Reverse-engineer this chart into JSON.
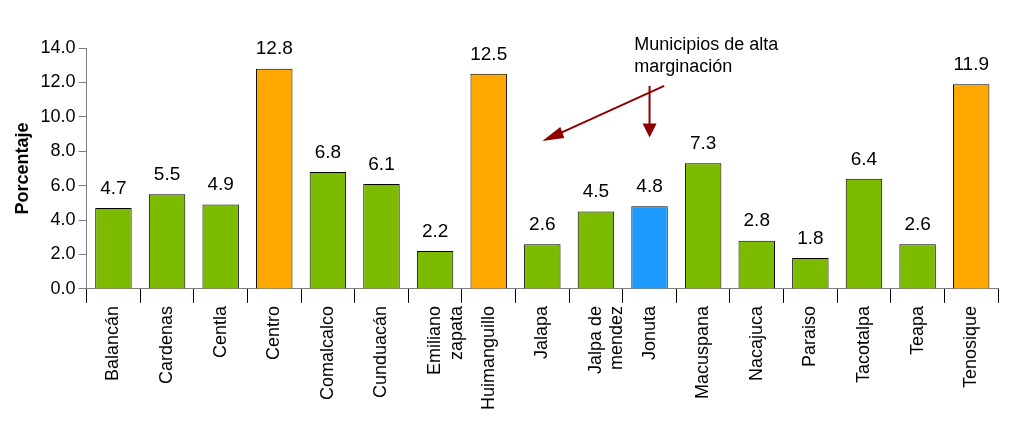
{
  "chart_data": {
    "type": "bar",
    "ylabel": "Porcentaje",
    "categories": [
      "Balancán",
      "Cardenas",
      "Centla",
      "Centro",
      "Comalcalco",
      "Cunduacán",
      "Emiliano zapata",
      "Huimanguillo",
      "Jalapa",
      "Jalpa de mendez",
      "Jonuta",
      "Macuspana",
      "Nacajuca",
      "Paraiso",
      "Tacotalpa",
      "Teapa",
      "Tenosique"
    ],
    "values": [
      4.7,
      5.5,
      4.9,
      12.8,
      6.8,
      6.1,
      2.2,
      12.5,
      2.6,
      4.5,
      4.8,
      7.3,
      2.8,
      1.8,
      6.4,
      2.6,
      11.9
    ],
    "colors": [
      "#7dbb00",
      "#7dbb00",
      "#7dbb00",
      "#ffa800",
      "#7dbb00",
      "#7dbb00",
      "#7dbb00",
      "#ffa800",
      "#7dbb00",
      "#7dbb00",
      "#1e9bff",
      "#7dbb00",
      "#7dbb00",
      "#7dbb00",
      "#7dbb00",
      "#7dbb00",
      "#ffa800"
    ],
    "ylim": [
      0,
      14
    ],
    "yticks": [
      {
        "value": 0,
        "label": "0.0"
      },
      {
        "value": 2,
        "label": "2.0"
      },
      {
        "value": 4,
        "label": "4.0"
      },
      {
        "value": 6,
        "label": "6.0"
      },
      {
        "value": 8,
        "label": "8.0"
      },
      {
        "value": 10,
        "label": "10.0"
      },
      {
        "value": 12,
        "label": "12.0"
      },
      {
        "value": 14,
        "label": "14.0"
      }
    ],
    "data_labels": true,
    "grid": false,
    "legend": false,
    "annotations": [
      "Municipios de alta marginación"
    ]
  }
}
